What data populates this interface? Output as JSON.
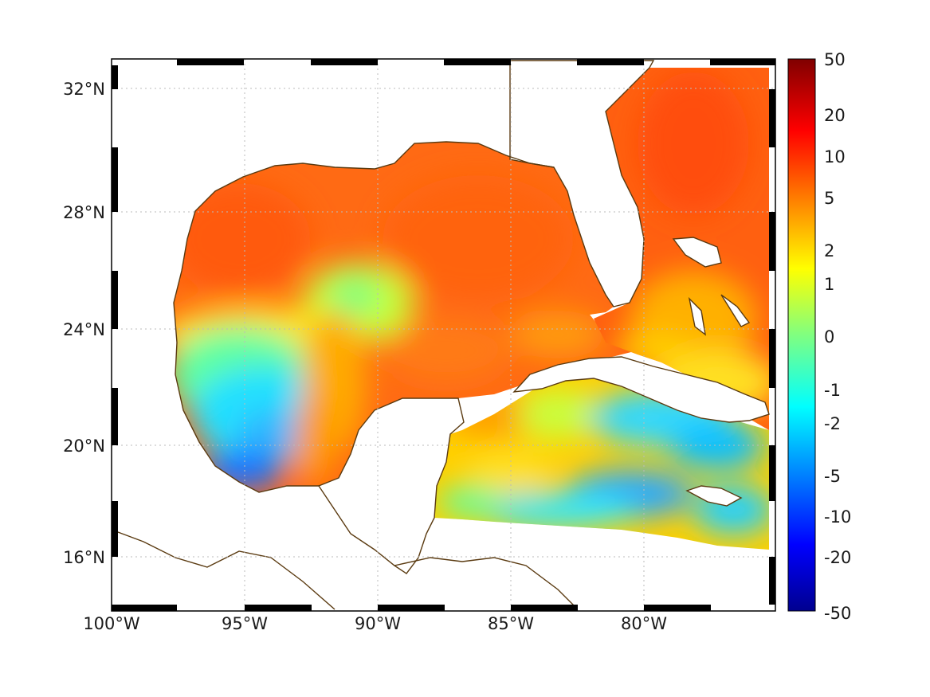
{
  "map": {
    "lon_ticks": [
      "100°W",
      "95°W",
      "90°W",
      "85°W",
      "80°W"
    ],
    "lat_ticks": [
      "32°N",
      "28°N",
      "24°N",
      "20°N",
      "16°N"
    ],
    "lon_range": [
      -100,
      -75.2
    ],
    "lat_range": [
      14.2,
      33
    ],
    "grid": true,
    "frame_style": "alternating black/white border",
    "coastline_color": "#5a3a10",
    "land_color": "#ffffff"
  },
  "colorbar": {
    "ticks": [
      "50",
      "20",
      "10",
      "5",
      "2",
      "1",
      "0",
      "-1",
      "-2",
      "-5",
      "-10",
      "-20",
      "-50"
    ],
    "range": [
      -50,
      50
    ],
    "colormap": "jet",
    "placement": "right"
  }
}
